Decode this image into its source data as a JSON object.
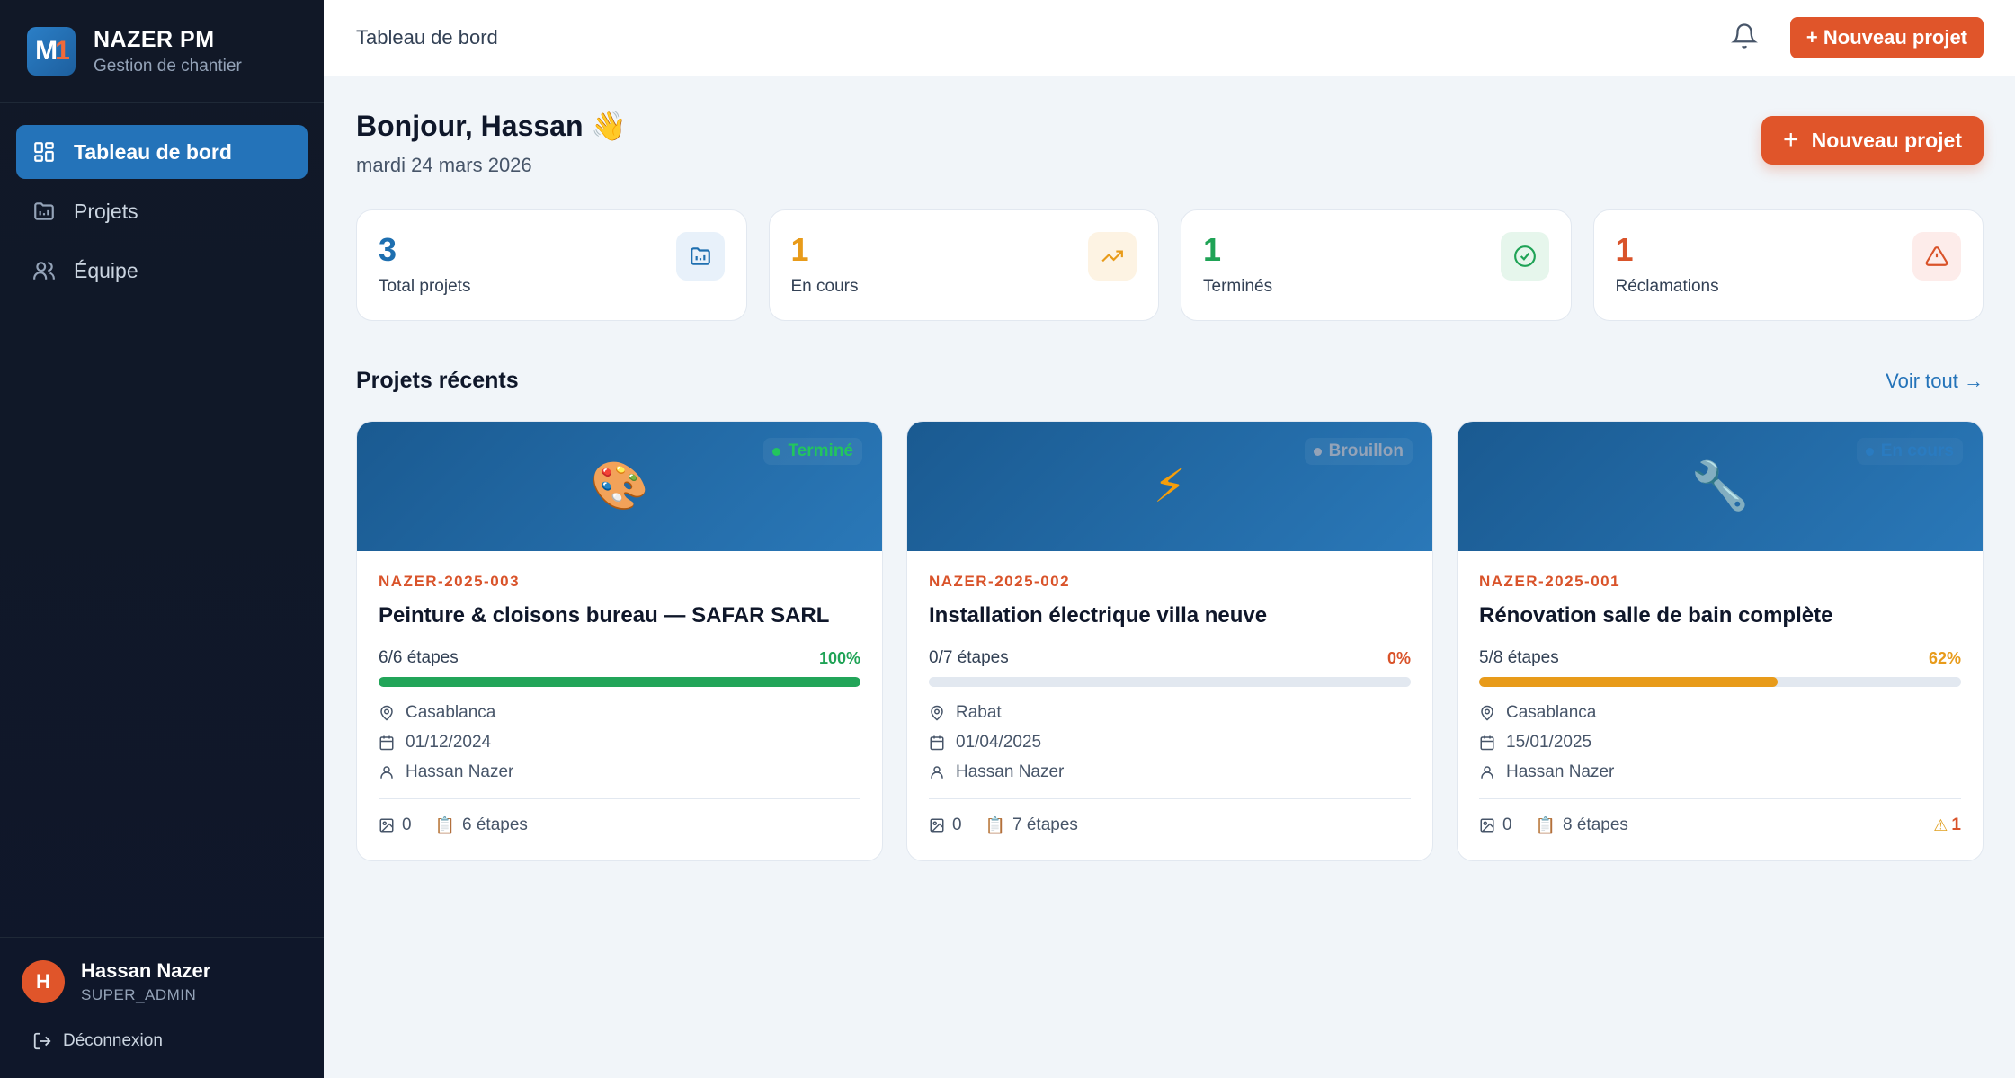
{
  "app": {
    "title": "NAZER PM",
    "subtitle": "Gestion de chantier",
    "logo_text_1": "M",
    "logo_text_2": "1"
  },
  "sidebar": {
    "items": [
      {
        "label": "Tableau de bord",
        "icon": "dashboard-icon",
        "active": true
      },
      {
        "label": "Projets",
        "icon": "projects-icon",
        "active": false
      },
      {
        "label": "Équipe",
        "icon": "team-icon",
        "active": false
      }
    ],
    "user": {
      "initial": "H",
      "name": "Hassan Nazer",
      "role": "SUPER_ADMIN"
    },
    "logout_label": "Déconnexion"
  },
  "topbar": {
    "title": "Tableau de bord",
    "new_project_label": "+ Nouveau projet"
  },
  "main": {
    "greeting": "Bonjour, Hassan 👋",
    "date": "mardi 24 mars 2026",
    "new_project_label": "Nouveau projet",
    "stats": [
      {
        "value": "3",
        "label": "Total projets",
        "color": "#1e6fb0",
        "icon": "folder-icon",
        "icon_bg": "#e8f1fa"
      },
      {
        "value": "1",
        "label": "En cours",
        "color": "#e89b1a",
        "icon": "trending-up-icon",
        "icon_bg": "#fdf3e3"
      },
      {
        "value": "1",
        "label": "Terminés",
        "color": "#1fa356",
        "icon": "check-circle-icon",
        "icon_bg": "#e6f6ec"
      },
      {
        "value": "1",
        "label": "Réclamations",
        "color": "#d9532a",
        "icon": "alert-triangle-icon",
        "icon_bg": "#fdecea"
      }
    ],
    "recent_title": "Projets récents",
    "see_all_label": "Voir tout →",
    "projects": [
      {
        "emoji": "🎨",
        "status": "Terminé",
        "status_color": "#22c55e",
        "ref": "NAZER-2025-003",
        "title": "Peinture & cloisons bureau — SAFAR SARL",
        "steps_text": "6/6 étapes",
        "pct_text": "100%",
        "progress": 1.0,
        "bar_color": "#22a559",
        "pct_color": "#1fa356",
        "city": "Casablanca",
        "date": "01/12/2024",
        "owner": "Hassan Nazer",
        "photos": "0",
        "steps_label": "6 étapes",
        "alerts": ""
      },
      {
        "emoji": "⚡",
        "status": "Brouillon",
        "status_color": "#94a3b8",
        "ref": "NAZER-2025-002",
        "title": "Installation électrique villa neuve",
        "steps_text": "0/7 étapes",
        "pct_text": "0%",
        "progress": 0.0,
        "bar_color": "#e2e8f0",
        "pct_color": "#d9532a",
        "city": "Rabat",
        "date": "01/04/2025",
        "owner": "Hassan Nazer",
        "photos": "0",
        "steps_label": "7 étapes",
        "alerts": ""
      },
      {
        "emoji": "🔧",
        "status": "En cours",
        "status_color": "#2a7bc0",
        "ref": "NAZER-2025-001",
        "title": "Rénovation salle de bain complète",
        "steps_text": "5/8 étapes",
        "pct_text": "62%",
        "progress": 0.62,
        "bar_color": "#e89b1a",
        "pct_color": "#e89b1a",
        "city": "Casablanca",
        "date": "15/01/2025",
        "owner": "Hassan Nazer",
        "photos": "0",
        "steps_label": "8 étapes",
        "alerts": "1"
      }
    ]
  }
}
